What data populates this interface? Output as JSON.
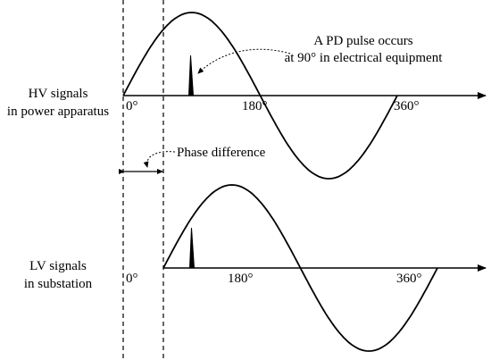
{
  "annotation": {
    "lines": [
      "A PD pulse occurs",
      "at 90° in electrical equipment"
    ]
  },
  "hv_signal": {
    "label": [
      "HV signals",
      "in power apparatus"
    ],
    "ticks": [
      "0°",
      "180°",
      "360°"
    ]
  },
  "lv_signal": {
    "label": [
      "LV signals",
      "in substation"
    ],
    "ticks": [
      "0°",
      "180°",
      "360°"
    ]
  },
  "phase_difference": "Phase difference"
}
